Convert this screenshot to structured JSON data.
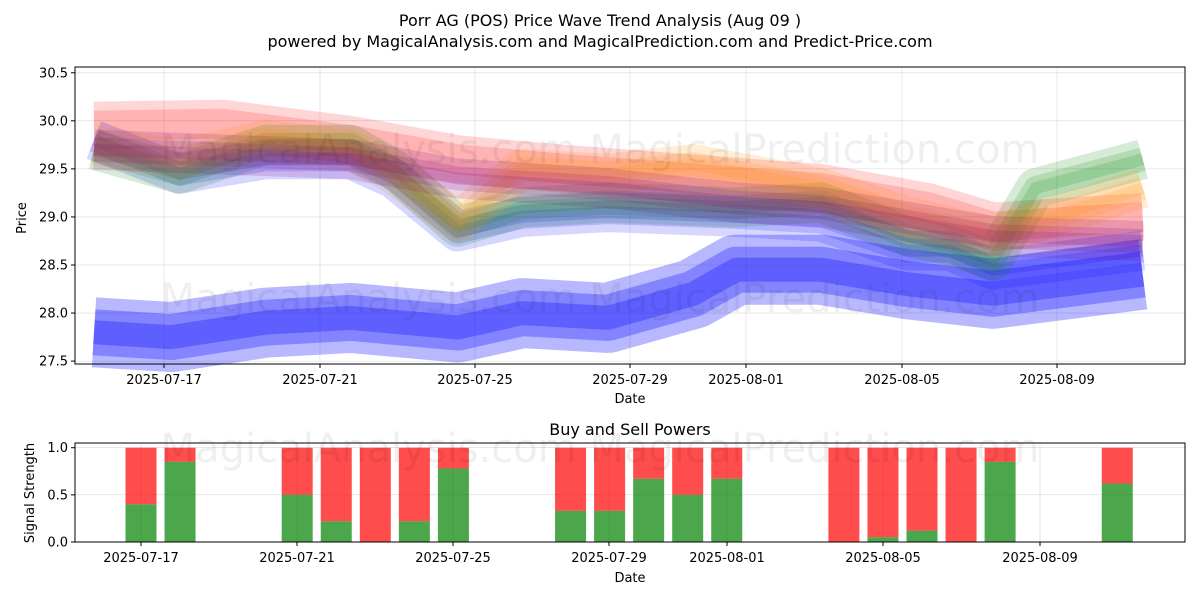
{
  "chart_data": [
    {
      "type": "area",
      "title": "Porr AG (POS) Price Wave Trend Analysis (Aug 09 )",
      "subtitle": "powered by MagicalAnalysis.com and MagicalPrediction.com and Predict-Price.com",
      "xlabel": "Date",
      "ylabel": "Price",
      "ylim": [
        27.47,
        30.56
      ],
      "y_ticks": [
        "27.5",
        "28.0",
        "28.5",
        "29.0",
        "29.5",
        "30.0",
        "30.5"
      ],
      "x_ticks": [
        "2025-07-17",
        "2025-07-21",
        "2025-07-25",
        "2025-07-29",
        "2025-08-01",
        "2025-08-05",
        "2025-08-09"
      ],
      "grid": true,
      "watermark": "MagicalAnalysis.com   MagicalPrediction.com",
      "series": [
        {
          "name": "red-band",
          "color": "#ff0000",
          "x": [
            0,
            3,
            6,
            8.5,
            11,
            14,
            17,
            19.5,
            21,
            24.5
          ],
          "values": [
            29.95,
            29.97,
            29.8,
            29.6,
            29.5,
            29.4,
            29.3,
            29.1,
            28.9,
            29.0
          ]
        },
        {
          "name": "blue-band-upper",
          "color": "#0000ff",
          "x": [
            0,
            2,
            4,
            6,
            7,
            8.5,
            10,
            12,
            15,
            17,
            19,
            20,
            21,
            24.5
          ],
          "values": [
            29.8,
            29.45,
            29.6,
            29.6,
            29.4,
            28.85,
            29.0,
            29.05,
            29.0,
            28.95,
            28.65,
            28.65,
            28.45,
            28.65
          ]
        },
        {
          "name": "blue-band-lower",
          "color": "#0000ff",
          "x": [
            0,
            1.8,
            4,
            6,
            8.5,
            10,
            12,
            14,
            15,
            17,
            19,
            21,
            24.5
          ],
          "values": [
            27.8,
            27.75,
            27.9,
            27.95,
            27.85,
            28.0,
            27.95,
            28.2,
            28.45,
            28.45,
            28.3,
            28.2,
            28.4
          ]
        },
        {
          "name": "green-band",
          "color": "#008000",
          "x": [
            0,
            2,
            4,
            6,
            7,
            8.5,
            10,
            12,
            15,
            17,
            19,
            20,
            21,
            22,
            24.5
          ],
          "values": [
            29.7,
            29.45,
            29.75,
            29.75,
            29.5,
            28.9,
            29.1,
            29.15,
            29.1,
            29.15,
            28.8,
            28.7,
            28.55,
            29.3,
            29.6
          ]
        },
        {
          "name": "orange-band",
          "color": "#ff8c00",
          "x": [
            0,
            2,
            4,
            6,
            7,
            8.5,
            10,
            12,
            14,
            17,
            19,
            21,
            24.5
          ],
          "values": [
            29.75,
            29.6,
            29.8,
            29.7,
            29.45,
            28.95,
            29.5,
            29.45,
            29.55,
            29.3,
            29.0,
            28.8,
            29.3
          ]
        },
        {
          "name": "purple-band",
          "color": "#800080",
          "x": [
            0,
            6,
            8.5,
            12,
            15,
            17,
            21,
            24.5
          ],
          "values": [
            29.7,
            29.6,
            29.4,
            29.3,
            29.15,
            29.1,
            28.8,
            28.75
          ]
        }
      ]
    },
    {
      "type": "bar",
      "title": "Buy and Sell Powers",
      "xlabel": "Date",
      "ylabel": "Signal Strength",
      "ylim": [
        0,
        1.05
      ],
      "y_ticks": [
        "0.0",
        "0.5",
        "1.0"
      ],
      "x_ticks": [
        "2025-07-17",
        "2025-07-21",
        "2025-07-25",
        "2025-07-29",
        "2025-08-01",
        "2025-08-05",
        "2025-08-09"
      ],
      "buy_color": "#008000",
      "sell_color": "#ff0000",
      "bars": [
        {
          "x": 1,
          "buy": 0.4
        },
        {
          "x": 2,
          "buy": 0.85
        },
        {
          "x": 5,
          "buy": 0.5
        },
        {
          "x": 6,
          "buy": 0.22
        },
        {
          "x": 7,
          "buy": 0.0
        },
        {
          "x": 8,
          "buy": 0.22
        },
        {
          "x": 9,
          "buy": 0.78
        },
        {
          "x": 12,
          "buy": 0.33
        },
        {
          "x": 13,
          "buy": 0.33
        },
        {
          "x": 14,
          "buy": 0.67
        },
        {
          "x": 15,
          "buy": 0.5
        },
        {
          "x": 16,
          "buy": 0.67
        },
        {
          "x": 19,
          "buy": 0.0
        },
        {
          "x": 20,
          "buy": 0.05
        },
        {
          "x": 21,
          "buy": 0.12
        },
        {
          "x": 22,
          "buy": 0.0
        },
        {
          "x": 23,
          "buy": 0.85
        },
        {
          "x": 26,
          "buy": 0.62
        }
      ],
      "watermark": "MagicalAnalysis.com   MagicalPrediction.com"
    }
  ]
}
